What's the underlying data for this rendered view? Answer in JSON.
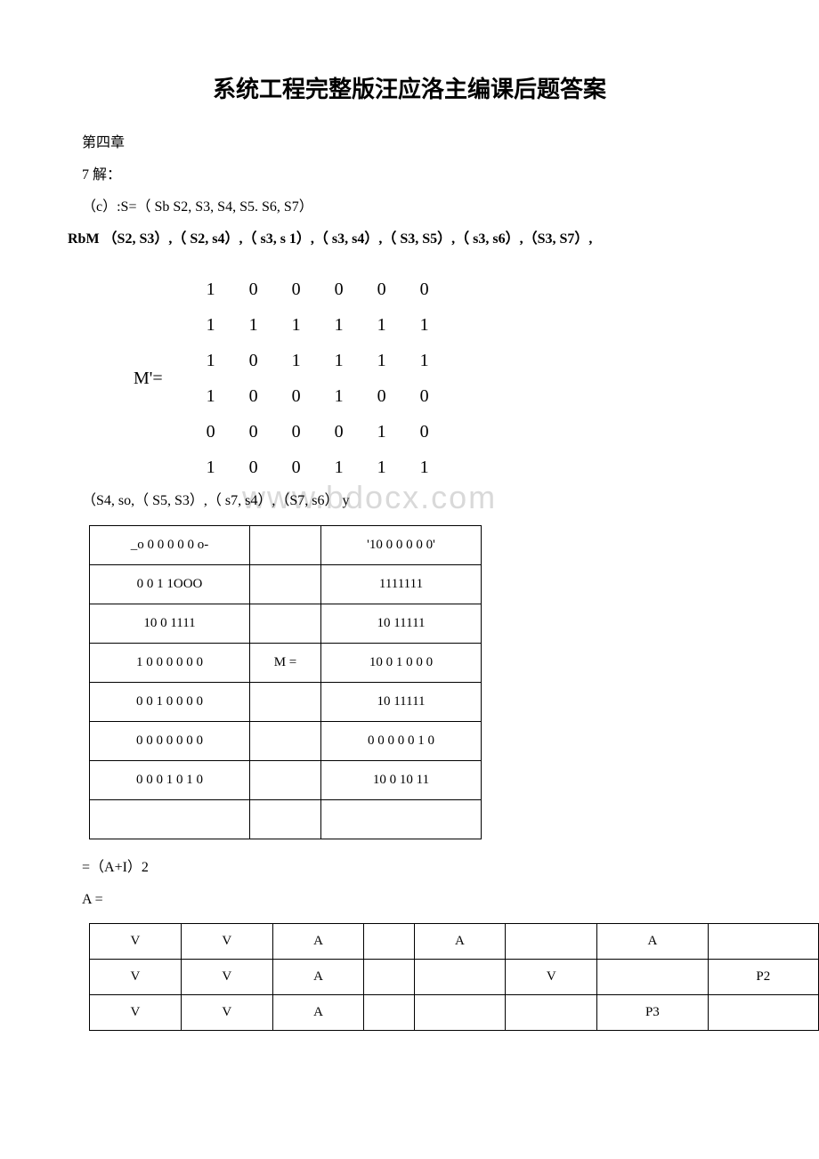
{
  "title": "系统工程完整版汪应洛主编课后题答案",
  "lines": {
    "l1": "第四章",
    "l2": "7 解：",
    "l3": "（c）:S=（ Sb S2, S3, S4, S5. S6, S7）",
    "l4": "RbM （S2, S3）,（ S2, s4）,（ s3, s 1）,（ s3, s4）,（ S3, S5）,（ s3, s6）,（S3, S7）,",
    "l5": "（S4, so,（ S5, S3）,（ s7, s4）,（S7, s6） y",
    "l6": "=（A+I）2",
    "l7": "A ="
  },
  "matrixM": {
    "label": "M'=",
    "rows": [
      [
        "1",
        "0",
        "0",
        "0",
        "0",
        "0"
      ],
      [
        "1",
        "1",
        "1",
        "1",
        "1",
        "1"
      ],
      [
        "1",
        "0",
        "1",
        "1",
        "1",
        "1"
      ],
      [
        "1",
        "0",
        "0",
        "1",
        "0",
        "0"
      ],
      [
        "0",
        "0",
        "0",
        "0",
        "1",
        "0"
      ],
      [
        "1",
        "0",
        "0",
        "1",
        "1",
        "1"
      ]
    ]
  },
  "table1": {
    "rows": [
      [
        "_o 0 0 0 0 0 o-",
        "",
        "'10 0 0 0 0 0'"
      ],
      [
        "0 0 1 1OOO",
        "",
        "1111111"
      ],
      [
        "10 0 1111",
        "",
        "10 11111"
      ],
      [
        "1 0 0 0 0 0 0",
        "M =",
        "10 0 1 0 0 0"
      ],
      [
        "0 0 1 0 0 0 0",
        "",
        "10 11111"
      ],
      [
        "0 0 0 0 0 0 0",
        "",
        "0 0 0 0 0 1 0"
      ],
      [
        "0 0 0 1 0 1 0",
        "",
        "10 0 10 11"
      ],
      [
        "",
        "",
        ""
      ]
    ]
  },
  "table2": {
    "rows": [
      [
        "V",
        "V",
        "A",
        "",
        "A",
        "",
        "A",
        ""
      ],
      [
        "V",
        "V",
        "A",
        "",
        "",
        "V",
        "",
        "P2"
      ],
      [
        "V",
        "V",
        "A",
        "",
        "",
        "",
        "P3",
        ""
      ]
    ]
  },
  "watermark": "www.bdocx.com",
  "colors": {
    "text": "#000000",
    "bg": "#ffffff",
    "wm": "#d9d9d9",
    "border": "#000000"
  }
}
